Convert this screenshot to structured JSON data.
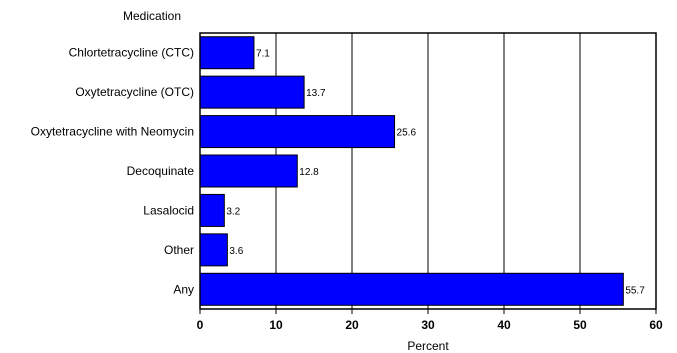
{
  "chart_data": {
    "type": "bar",
    "orientation": "horizontal",
    "title": "Medication",
    "xlabel": "Percent",
    "ylabel": "",
    "categories": [
      "Chlortetracycline (CTC)",
      "Oxytetracycline (OTC)",
      "Oxytetracycline with Neomycin",
      "Decoquinate",
      "Lasalocid",
      "Other",
      "Any"
    ],
    "values": [
      7.1,
      13.7,
      25.6,
      12.8,
      3.2,
      3.6,
      55.7
    ],
    "data_labels": [
      "7.1",
      "13.7",
      "25.6",
      "12.8",
      "3.2",
      "3.6",
      "55.7"
    ],
    "xlim": [
      0,
      60
    ],
    "xticks": [
      0,
      10,
      20,
      30,
      40,
      50,
      60
    ],
    "xtick_labels": [
      "0",
      "10",
      "20",
      "30",
      "40",
      "50",
      "60"
    ],
    "grid": "vertical",
    "bar_color": "#0000ff",
    "bar_edge_color": "#000000"
  }
}
